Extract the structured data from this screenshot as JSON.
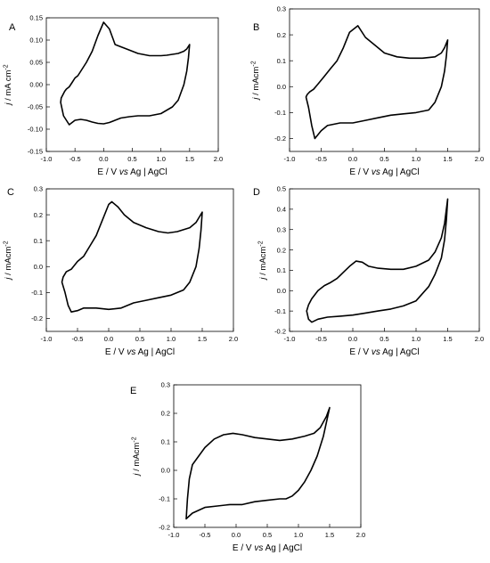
{
  "chart_data": [
    {
      "type": "line",
      "panel": "A",
      "xlabel": "E / V vs Ag | AgCl",
      "xlabel_parts": [
        "E / V ",
        "vs",
        " Ag | AgCl"
      ],
      "ylabel": "j / mA cm-2",
      "ylabel_parts": [
        "j",
        " / mA cm",
        "-2"
      ],
      "xlim": [
        -1.0,
        2.0
      ],
      "ylim": [
        -0.15,
        0.15
      ],
      "xticks": [
        -1.0,
        -0.5,
        0.0,
        0.5,
        1.0,
        1.5,
        2.0
      ],
      "xtick_labels": [
        "-1.0",
        "-0.5",
        "0.0",
        "0.5",
        "1.0",
        "1.5",
        "2.0"
      ],
      "yticks": [
        -0.15,
        -0.1,
        -0.05,
        0.0,
        0.05,
        0.1,
        0.15
      ],
      "ytick_labels": [
        "-0.15",
        "-0.10",
        "-0.05",
        "0.00",
        "0.05",
        "0.10",
        "0.15"
      ],
      "series": [
        {
          "x": [
            1.5,
            1.48,
            1.45,
            1.4,
            1.3,
            1.2,
            1.0,
            0.8,
            0.6,
            0.45,
            0.3,
            0.2,
            0.1,
            0.0,
            -0.1,
            -0.2,
            -0.3,
            -0.4,
            -0.5,
            -0.6,
            -0.7,
            -0.75,
            -0.74,
            -0.72,
            -0.7,
            -0.68,
            -0.65,
            -0.6,
            -0.55,
            -0.5,
            -0.45,
            -0.4,
            -0.35,
            -0.3,
            -0.2,
            -0.1,
            0.0,
            0.1,
            0.2,
            0.3,
            0.4,
            0.5,
            0.6,
            0.8,
            1.0,
            1.1,
            1.2,
            1.3,
            1.4,
            1.45,
            1.5
          ],
          "y": [
            0.09,
            0.06,
            0.03,
            0.0,
            -0.035,
            -0.05,
            -0.065,
            -0.07,
            -0.07,
            -0.072,
            -0.075,
            -0.08,
            -0.085,
            -0.088,
            -0.087,
            -0.084,
            -0.08,
            -0.078,
            -0.08,
            -0.09,
            -0.07,
            -0.04,
            -0.03,
            -0.025,
            -0.02,
            -0.015,
            -0.01,
            -0.005,
            0.005,
            0.015,
            0.02,
            0.03,
            0.04,
            0.05,
            0.075,
            0.11,
            0.14,
            0.125,
            0.09,
            0.085,
            0.08,
            0.075,
            0.07,
            0.065,
            0.065,
            0.066,
            0.068,
            0.07,
            0.075,
            0.08,
            0.09
          ]
        }
      ]
    },
    {
      "type": "line",
      "panel": "B",
      "xlabel": "E / V vs Ag | AgCl",
      "xlabel_parts": [
        "E / V ",
        "vs",
        " Ag | AgCl"
      ],
      "ylabel": "j / mAcm-2",
      "ylabel_parts": [
        "j",
        " / mAcm",
        "-2"
      ],
      "xlim": [
        -1.0,
        2.0
      ],
      "ylim": [
        -0.25,
        0.3
      ],
      "xticks": [
        -1.0,
        -0.5,
        0.0,
        0.5,
        1.0,
        1.5,
        2.0
      ],
      "xtick_labels": [
        "-1.0",
        "-0.5",
        "0.0",
        "0.5",
        "1.0",
        "1.5",
        "2.0"
      ],
      "yticks": [
        -0.2,
        -0.1,
        0.0,
        0.1,
        0.2,
        0.3
      ],
      "ytick_labels": [
        "-0.2",
        "-0.1",
        "0.0",
        "0.1",
        "0.2",
        "0.3"
      ],
      "series": [
        {
          "x": [
            1.5,
            1.48,
            1.45,
            1.4,
            1.3,
            1.2,
            1.0,
            0.8,
            0.6,
            0.4,
            0.2,
            0.0,
            -0.2,
            -0.4,
            -0.5,
            -0.6,
            -0.65,
            -0.7,
            -0.74,
            -0.72,
            -0.68,
            -0.62,
            -0.55,
            -0.45,
            -0.35,
            -0.25,
            -0.15,
            -0.05,
            0.08,
            0.2,
            0.35,
            0.5,
            0.7,
            0.9,
            1.1,
            1.3,
            1.4,
            1.45,
            1.5
          ],
          "y": [
            0.18,
            0.12,
            0.06,
            0.0,
            -0.06,
            -0.09,
            -0.1,
            -0.105,
            -0.11,
            -0.12,
            -0.13,
            -0.14,
            -0.14,
            -0.15,
            -0.17,
            -0.2,
            -0.15,
            -0.08,
            -0.04,
            -0.03,
            -0.02,
            -0.01,
            0.01,
            0.04,
            0.07,
            0.1,
            0.15,
            0.21,
            0.235,
            0.19,
            0.16,
            0.13,
            0.115,
            0.11,
            0.11,
            0.115,
            0.13,
            0.15,
            0.18
          ]
        }
      ]
    },
    {
      "type": "line",
      "panel": "C",
      "xlabel": "E / V vs Ag | AgCl",
      "xlabel_parts": [
        "E / V ",
        "vs",
        " Ag | AgCl"
      ],
      "ylabel": "j / mAcm-2",
      "ylabel_parts": [
        "j",
        " / mAcm",
        "-2"
      ],
      "xlim": [
        -1.0,
        2.0
      ],
      "ylim": [
        -0.25,
        0.3
      ],
      "xticks": [
        -1.0,
        -0.5,
        0.0,
        0.5,
        1.0,
        1.5,
        2.0
      ],
      "xtick_labels": [
        "-1.0",
        "-0.5",
        "0.0",
        "0.5",
        "1.0",
        "1.5",
        "2.0"
      ],
      "yticks": [
        -0.2,
        -0.1,
        0.0,
        0.1,
        0.2,
        0.3
      ],
      "ytick_labels": [
        "-0.2",
        "-0.1",
        "0.0",
        "0.1",
        "0.2",
        "0.3"
      ],
      "series": [
        {
          "x": [
            1.5,
            1.48,
            1.45,
            1.4,
            1.3,
            1.2,
            1.0,
            0.8,
            0.6,
            0.4,
            0.2,
            0.0,
            -0.2,
            -0.4,
            -0.5,
            -0.6,
            -0.65,
            -0.7,
            -0.75,
            -0.73,
            -0.68,
            -0.6,
            -0.5,
            -0.4,
            -0.3,
            -0.2,
            -0.1,
            0.0,
            0.05,
            0.15,
            0.25,
            0.4,
            0.6,
            0.8,
            0.95,
            1.1,
            1.3,
            1.4,
            1.45,
            1.5
          ],
          "y": [
            0.21,
            0.14,
            0.07,
            0.0,
            -0.06,
            -0.09,
            -0.11,
            -0.12,
            -0.13,
            -0.14,
            -0.16,
            -0.165,
            -0.16,
            -0.16,
            -0.17,
            -0.175,
            -0.15,
            -0.1,
            -0.06,
            -0.04,
            -0.02,
            -0.01,
            0.02,
            0.04,
            0.08,
            0.12,
            0.18,
            0.24,
            0.25,
            0.23,
            0.2,
            0.17,
            0.15,
            0.135,
            0.13,
            0.135,
            0.15,
            0.17,
            0.19,
            0.21
          ]
        }
      ]
    },
    {
      "type": "line",
      "panel": "D",
      "xlabel": "E / V vs Ag | AgCl",
      "xlabel_parts": [
        "E / V ",
        "vs",
        " Ag | AgCl"
      ],
      "ylabel": "j / mAcm-2",
      "ylabel_parts": [
        "j",
        " / mAcm",
        "-2"
      ],
      "xlim": [
        -1.0,
        2.0
      ],
      "ylim": [
        -0.2,
        0.5
      ],
      "xticks": [
        -1.0,
        -0.5,
        0.0,
        0.5,
        1.0,
        1.5,
        2.0
      ],
      "xtick_labels": [
        "-1.0",
        "-0.5",
        "0.0",
        "0.5",
        "1.0",
        "1.5",
        "2.0"
      ],
      "yticks": [
        -0.2,
        -0.1,
        0.0,
        0.1,
        0.2,
        0.3,
        0.4,
        0.5
      ],
      "ytick_labels": [
        "-0.2",
        "-0.1",
        "0.0",
        "0.1",
        "0.2",
        "0.3",
        "0.4",
        "0.5"
      ],
      "series": [
        {
          "x": [
            1.5,
            1.48,
            1.45,
            1.4,
            1.3,
            1.2,
            1.0,
            0.8,
            0.6,
            0.4,
            0.2,
            0.0,
            -0.2,
            -0.4,
            -0.55,
            -0.65,
            -0.7,
            -0.73,
            -0.7,
            -0.65,
            -0.55,
            -0.45,
            -0.35,
            -0.25,
            -0.15,
            -0.05,
            0.05,
            0.15,
            0.25,
            0.4,
            0.6,
            0.8,
            1.0,
            1.2,
            1.3,
            1.4,
            1.45,
            1.5
          ],
          "y": [
            0.45,
            0.35,
            0.25,
            0.16,
            0.08,
            0.02,
            -0.05,
            -0.075,
            -0.09,
            -0.1,
            -0.11,
            -0.12,
            -0.125,
            -0.13,
            -0.14,
            -0.155,
            -0.14,
            -0.1,
            -0.07,
            -0.04,
            0.0,
            0.025,
            0.04,
            0.06,
            0.09,
            0.12,
            0.145,
            0.14,
            0.12,
            0.11,
            0.105,
            0.105,
            0.12,
            0.15,
            0.19,
            0.26,
            0.33,
            0.45
          ]
        }
      ]
    },
    {
      "type": "line",
      "panel": "E",
      "xlabel": "E / V vs Ag | AgCl",
      "xlabel_parts": [
        "E / V ",
        "vs",
        " Ag | AgCl"
      ],
      "ylabel": "j / mAcm-2",
      "ylabel_parts": [
        "j",
        " / mAcm",
        "-2"
      ],
      "xlim": [
        -1.0,
        2.0
      ],
      "ylim": [
        -0.2,
        0.3
      ],
      "xticks": [
        -1.0,
        -0.5,
        0.0,
        0.5,
        1.0,
        1.5,
        2.0
      ],
      "xtick_labels": [
        "-1.0",
        "-0.5",
        "0.0",
        "0.5",
        "1.0",
        "1.5",
        "2.0"
      ],
      "yticks": [
        -0.2,
        -0.1,
        0.0,
        0.1,
        0.2,
        0.3
      ],
      "ytick_labels": [
        "-0.2",
        "-0.1",
        "0.0",
        "0.1",
        "0.2",
        "0.3"
      ],
      "series": [
        {
          "x": [
            1.5,
            1.45,
            1.4,
            1.3,
            1.2,
            1.1,
            1.0,
            0.9,
            0.8,
            0.7,
            0.5,
            0.3,
            0.1,
            -0.1,
            -0.3,
            -0.5,
            -0.7,
            -0.8,
            -0.78,
            -0.75,
            -0.7,
            -0.6,
            -0.5,
            -0.35,
            -0.2,
            -0.05,
            0.1,
            0.3,
            0.5,
            0.7,
            0.9,
            1.1,
            1.25,
            1.35,
            1.45,
            1.5
          ],
          "y": [
            0.22,
            0.17,
            0.12,
            0.05,
            0.0,
            -0.04,
            -0.07,
            -0.09,
            -0.1,
            -0.1,
            -0.105,
            -0.11,
            -0.12,
            -0.12,
            -0.125,
            -0.13,
            -0.15,
            -0.17,
            -0.1,
            -0.03,
            0.02,
            0.05,
            0.08,
            0.11,
            0.125,
            0.13,
            0.125,
            0.115,
            0.11,
            0.105,
            0.11,
            0.12,
            0.13,
            0.15,
            0.19,
            0.22
          ]
        }
      ]
    }
  ]
}
